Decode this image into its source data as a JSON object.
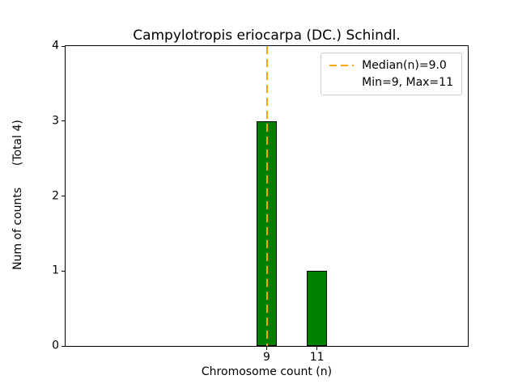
{
  "chart_data": {
    "type": "bar",
    "title": "Campylotropis eriocarpa (DC.) Schindl.",
    "xlabel": "Chromosome count (n)",
    "ylabel": "Num of counts",
    "ylabel_annotation": "(Total 4)",
    "ylabel_display": "Num of counts      (Total 4)",
    "x": [
      9,
      11
    ],
    "values": [
      3,
      1
    ],
    "total_counts": 4,
    "median": 9.0,
    "min": 9,
    "max": 11,
    "xticks": [
      9,
      11
    ],
    "yticks": [
      0,
      1,
      2,
      3,
      4
    ],
    "xlim": [
      1,
      17
    ],
    "ylim": [
      0,
      4
    ],
    "bar_width": 0.8,
    "grid": false,
    "legend_position": "upper right",
    "colors": {
      "bar_fill": "#008000",
      "bar_edge": "#000000",
      "median_line": "#ffa500",
      "background": "#ffffff",
      "legend_border": "#cccccc"
    },
    "legend_entries": [
      {
        "label": "Median(n)=9.0",
        "handle": "dashed-line"
      },
      {
        "label": "Min=9, Max=11",
        "handle": "none"
      }
    ]
  }
}
